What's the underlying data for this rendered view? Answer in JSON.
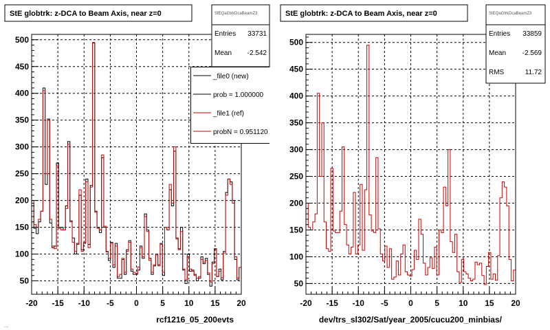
{
  "footer_text": "...",
  "chart_data": [
    {
      "type": "line",
      "title": "StE globtrk: z-DCA to Beam Axis, near z=0",
      "xlabel": "rcf1216_05_200evts",
      "ylabel": "",
      "xlim": [
        -20,
        20
      ],
      "ylim": [
        25,
        510
      ],
      "xticks": [
        -20,
        -15,
        -10,
        -5,
        0,
        5,
        10,
        15,
        20
      ],
      "yticks": [
        50,
        100,
        150,
        200,
        250,
        300,
        350,
        400,
        450,
        500
      ],
      "grid": true,
      "stats": {
        "header": "StEQaGtrkDcaBeamZ3",
        "entries_label": "Entries",
        "entries": "33731",
        "mean_label": "Mean",
        "mean": "-2.542"
      },
      "legend": {
        "position": "right",
        "items": [
          {
            "label": "_file0 (new)",
            "color": "#000000"
          },
          {
            "label": "prob = 1.000000",
            "color": "#000000"
          },
          {
            "label": "_file1 (ref)",
            "color": "#cc0000"
          },
          {
            "label": "probN = 0.951120",
            "color": "#cc0000"
          }
        ]
      },
      "bin_edges_x": [
        -20,
        20
      ],
      "series": [
        {
          "name": "_file0 (new)",
          "color": "#000000",
          "values": [
            195,
            148,
            138,
            160,
            180,
            410,
            230,
            352,
            158,
            112,
            115,
            270,
            150,
            150,
            145,
            190,
            310,
            162,
            130,
            100,
            120,
            210,
            108,
            120,
            240,
            118,
            228,
            494,
            180,
            150,
            140,
            280,
            150,
            104,
            88,
            122,
            75,
            120,
            55,
            55,
            90,
            62,
            108,
            125,
            68,
            62,
            62,
            70,
            115,
            92,
            175,
            145,
            92,
            62,
            78,
            100,
            80,
            120,
            60,
            150,
            145,
            220,
            190,
            292,
            130,
            110,
            150,
            70,
            45,
            100,
            68,
            70,
            62,
            50,
            55,
            95,
            82,
            92,
            62,
            40,
            85,
            110,
            58,
            72,
            52,
            105,
            215,
            240,
            235,
            200,
            90,
            52,
            75
          ]
        },
        {
          "name": "_file1 (ref)",
          "color": "#cc0000",
          "values": [
            200,
            155,
            150,
            165,
            180,
            405,
            250,
            350,
            165,
            115,
            110,
            265,
            148,
            145,
            145,
            185,
            305,
            160,
            122,
            105,
            118,
            220,
            105,
            122,
            235,
            112,
            225,
            495,
            178,
            148,
            145,
            285,
            152,
            105,
            92,
            120,
            80,
            115,
            58,
            62,
            92,
            66,
            105,
            122,
            72,
            66,
            64,
            76,
            112,
            95,
            170,
            142,
            88,
            66,
            80,
            98,
            78,
            118,
            66,
            150,
            145,
            230,
            195,
            300,
            128,
            108,
            142,
            72,
            52,
            95,
            72,
            68,
            60,
            55,
            58,
            90,
            85,
            88,
            65,
            48,
            82,
            108,
            58,
            68,
            56,
            102,
            210,
            240,
            230,
            195,
            95,
            55,
            75
          ]
        }
      ]
    },
    {
      "type": "line",
      "title": "StE globtrk: z-DCA to Beam Axis, near z=0",
      "xlabel": "dev/trs_sl302/Sat/year_2005/cucu200_minbias/",
      "ylabel": "",
      "xlim": [
        -20,
        20
      ],
      "ylim": [
        30,
        515
      ],
      "xticks": [
        -20,
        -15,
        -10,
        -5,
        0,
        5,
        10,
        15,
        20
      ],
      "yticks": [
        50,
        100,
        150,
        200,
        250,
        300,
        350,
        400,
        450,
        500
      ],
      "grid": true,
      "stats": {
        "header": "StEQaGtrkDcaBeamZ3",
        "entries_label": "Entries",
        "entries": "33859",
        "mean_label": "Mean",
        "mean": "-2.569",
        "rms_label": "RMS",
        "rms": "11.72"
      },
      "series": [
        {
          "name": "_file1 (ref)",
          "color": "#cc0000",
          "values": [
            200,
            155,
            150,
            165,
            180,
            405,
            250,
            350,
            165,
            115,
            110,
            265,
            148,
            145,
            145,
            185,
            305,
            160,
            122,
            105,
            118,
            220,
            105,
            122,
            235,
            112,
            225,
            495,
            178,
            148,
            145,
            285,
            152,
            105,
            92,
            120,
            80,
            115,
            58,
            62,
            92,
            66,
            105,
            122,
            72,
            66,
            64,
            76,
            112,
            95,
            170,
            142,
            88,
            66,
            80,
            98,
            78,
            118,
            66,
            150,
            145,
            230,
            195,
            300,
            128,
            108,
            142,
            72,
            52,
            95,
            72,
            68,
            60,
            55,
            58,
            90,
            85,
            88,
            65,
            48,
            82,
            108,
            58,
            68,
            56,
            102,
            210,
            240,
            230,
            195,
            95,
            55,
            75
          ]
        }
      ]
    }
  ]
}
